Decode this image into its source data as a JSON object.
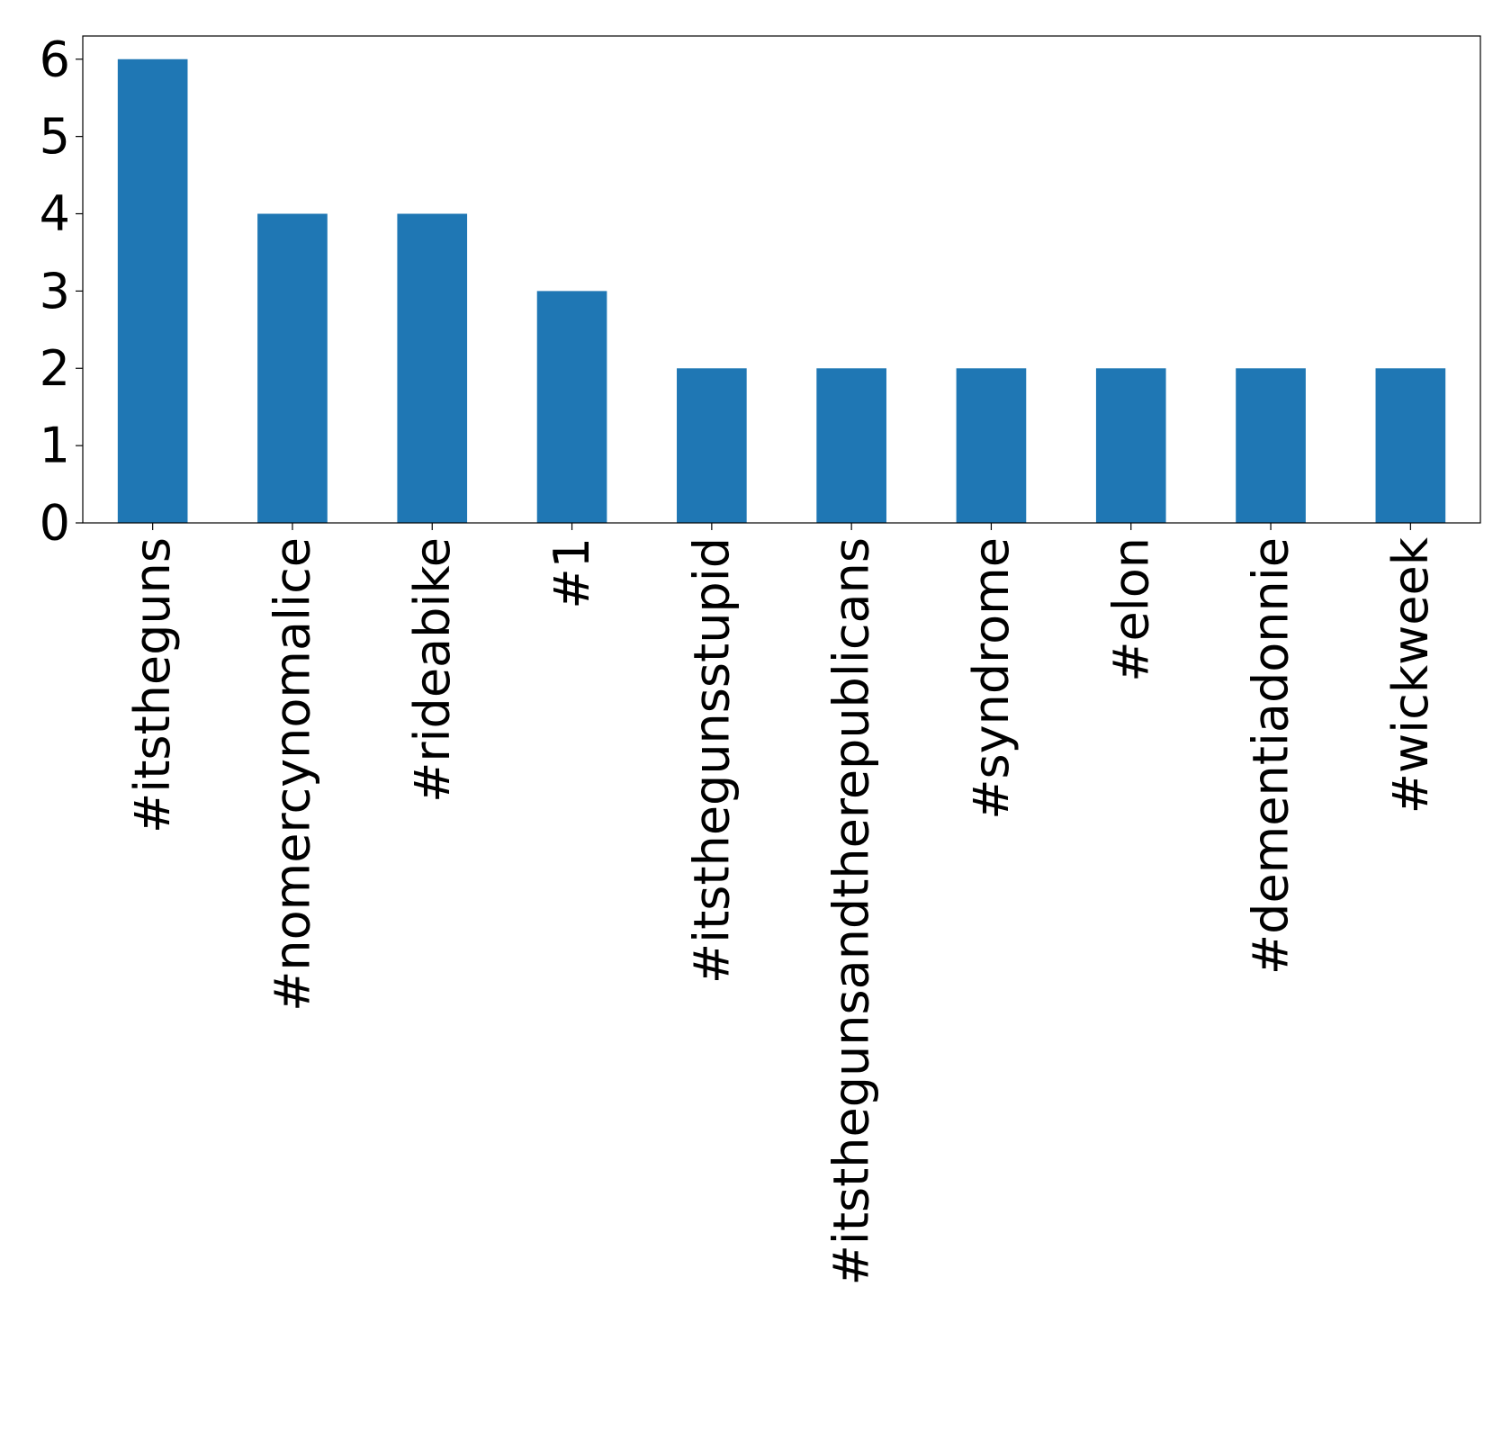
{
  "chart_data": {
    "type": "bar",
    "title": "",
    "xlabel": "",
    "ylabel": "",
    "categories": [
      "#itstheguns",
      "#nomercynomalice",
      "#rideabike",
      "#1",
      "#itsthegunsstupid",
      "#itsthegunsandtherepublicans",
      "#syndrome",
      "#elon",
      "#dementiadonnie",
      "#wickweek"
    ],
    "values": [
      6,
      4,
      4,
      3,
      2,
      2,
      2,
      2,
      2,
      2
    ],
    "ylim": [
      0,
      6.3
    ],
    "yticks": [
      0,
      1,
      2,
      3,
      4,
      5,
      6
    ],
    "bar_color": "#1f77b4",
    "grid": false,
    "legend": "none"
  }
}
